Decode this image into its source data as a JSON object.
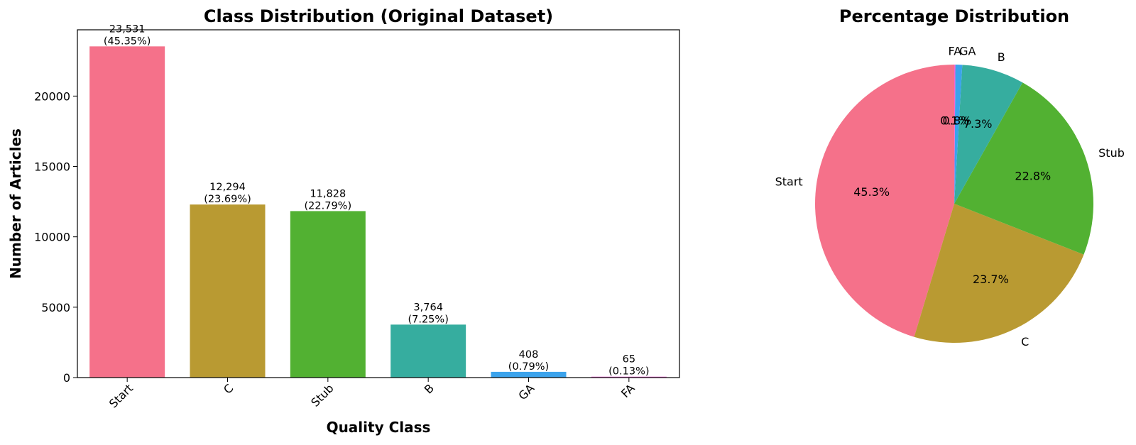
{
  "chart_data": [
    {
      "type": "bar",
      "title": "Class Distribution (Original Dataset)",
      "xlabel": "Quality Class",
      "ylabel": "Number of Articles",
      "categories": [
        "Start",
        "C",
        "Stub",
        "B",
        "GA",
        "FA"
      ],
      "values": [
        23531,
        12294,
        11828,
        3764,
        408,
        65
      ],
      "value_labels": [
        "23,531",
        "12,294",
        "11,828",
        "3,764",
        "408",
        "65"
      ],
      "percent_labels": [
        "(45.35%)",
        "(23.69%)",
        "(22.79%)",
        "(7.25%)",
        "(0.79%)",
        "(0.13%)"
      ],
      "colors": [
        "#f5718a",
        "#b99a32",
        "#52b132",
        "#36ad9f",
        "#3ba3ec",
        "#f066d7"
      ],
      "ylim": [
        0,
        24708
      ],
      "yticks": [
        0,
        5000,
        10000,
        15000,
        20000
      ],
      "ytick_labels": [
        "0",
        "5000",
        "10000",
        "15000",
        "20000"
      ],
      "grid": false
    },
    {
      "type": "pie",
      "title": "Percentage Distribution",
      "labels": [
        "Start",
        "C",
        "Stub",
        "B",
        "GA",
        "FA"
      ],
      "values": [
        45.35,
        23.69,
        22.79,
        7.25,
        0.79,
        0.13
      ],
      "pct_labels": [
        "45.3%",
        "23.7%",
        "22.8%",
        "7.3%",
        "0.8%",
        "0.1%"
      ],
      "colors": [
        "#f5718a",
        "#b99a32",
        "#52b132",
        "#36ad9f",
        "#3ba3ec",
        "#f066d7"
      ],
      "start_angle_deg": 90,
      "direction": "counterclockwise"
    }
  ]
}
